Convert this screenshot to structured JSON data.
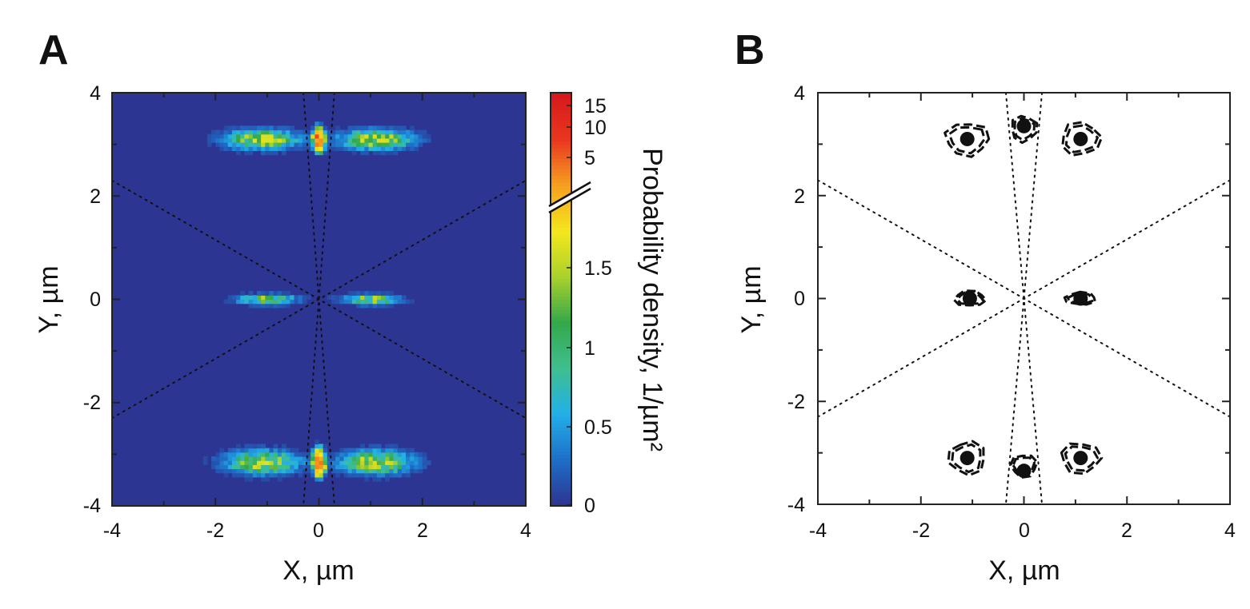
{
  "chart_data": [
    {
      "type": "heatmap",
      "panel_label": "A",
      "xlabel": "X, µm",
      "ylabel": "Y, µm",
      "xlim": [
        -4,
        4
      ],
      "ylim": [
        -4,
        4
      ],
      "xticks": [
        "-4",
        "-2",
        "0",
        "2",
        "4"
      ],
      "yticks": [
        "-4",
        "-2",
        "0",
        "2",
        "4"
      ],
      "x_values": [
        -4,
        -2,
        0,
        2,
        4
      ],
      "y_values": [
        -4,
        -2,
        0,
        2,
        4
      ],
      "background_color": "#2d3592",
      "colorbar": {
        "label": "Probability density, 1/µm²",
        "ticks_lower": [
          {
            "label": "0",
            "value": 0
          },
          {
            "label": "0.5",
            "value": 0.5
          },
          {
            "label": "1",
            "value": 1
          },
          {
            "label": "1.5",
            "value": 1.5
          }
        ],
        "ticks_upper": [
          {
            "label": "5",
            "value": 5
          },
          {
            "label": "10",
            "value": 10
          },
          {
            "label": "15",
            "value": 15
          }
        ],
        "lower_range": [
          0,
          2
        ],
        "upper_range": [
          2,
          17
        ],
        "axis_break": true,
        "colors": [
          "#2d3592",
          "#1e6fc8",
          "#22b0e8",
          "#3fbf8f",
          "#33a84a",
          "#a9d12b",
          "#f4e71d",
          "#f6a11f",
          "#e9381f",
          "#d7191c"
        ]
      },
      "clusters": [
        {
          "x": -1.1,
          "y": 3.1,
          "sx": 0.45,
          "sy": 0.12,
          "peak": 2.0
        },
        {
          "x": 1.1,
          "y": 3.1,
          "sx": 0.45,
          "sy": 0.12,
          "peak": 2.0
        },
        {
          "x": 0.0,
          "y": 3.1,
          "sx": 0.06,
          "sy": 0.12,
          "peak": 12
        },
        {
          "x": -1.0,
          "y": 0.0,
          "sx": 0.35,
          "sy": 0.06,
          "peak": 1.8
        },
        {
          "x": 1.0,
          "y": 0.0,
          "sx": 0.35,
          "sy": 0.06,
          "peak": 1.8
        },
        {
          "x": -1.1,
          "y": -3.15,
          "sx": 0.45,
          "sy": 0.14,
          "peak": 2.0
        },
        {
          "x": 1.1,
          "y": -3.15,
          "sx": 0.45,
          "sy": 0.14,
          "peak": 2.0
        },
        {
          "x": 0.0,
          "y": -3.15,
          "sx": 0.06,
          "sy": 0.13,
          "peak": 12
        }
      ],
      "guide_lines": [
        {
          "from": [
            -4,
            2.3
          ],
          "to": [
            4,
            -2.3
          ]
        },
        {
          "from": [
            -4,
            -2.3
          ],
          "to": [
            4,
            2.3
          ]
        },
        {
          "from": [
            -0.3,
            4
          ],
          "to": [
            0.3,
            -4
          ]
        },
        {
          "from": [
            0.3,
            4
          ],
          "to": [
            -0.3,
            -4
          ]
        }
      ]
    },
    {
      "type": "scatter",
      "panel_label": "B",
      "xlabel": "X, µm",
      "ylabel": "Y, µm",
      "xlim": [
        -4,
        4
      ],
      "ylim": [
        -4,
        4
      ],
      "xticks": [
        "-4",
        "-2",
        "0",
        "2",
        "4"
      ],
      "yticks": [
        "-4",
        "-2",
        "0",
        "2",
        "4"
      ],
      "x_values": [
        -4,
        -2,
        0,
        2,
        4
      ],
      "y_values": [
        -4,
        -2,
        0,
        2,
        4
      ],
      "points": [
        {
          "x": -1.1,
          "y": 3.1
        },
        {
          "x": 0.0,
          "y": 3.35
        },
        {
          "x": 1.1,
          "y": 3.1
        },
        {
          "x": -1.05,
          "y": 0.0
        },
        {
          "x": 1.1,
          "y": 0.0
        },
        {
          "x": -1.1,
          "y": -3.1
        },
        {
          "x": 0.0,
          "y": -3.35
        },
        {
          "x": 1.1,
          "y": -3.1
        }
      ],
      "contours": [
        {
          "x": -1.1,
          "y": 3.1,
          "rx": 0.42,
          "ry": 0.32
        },
        {
          "x": 0.0,
          "y": 3.3,
          "rx": 0.25,
          "ry": 0.25
        },
        {
          "x": 1.1,
          "y": 3.1,
          "rx": 0.38,
          "ry": 0.32
        },
        {
          "x": -1.05,
          "y": 0.0,
          "rx": 0.3,
          "ry": 0.15
        },
        {
          "x": 1.1,
          "y": 0.0,
          "rx": 0.3,
          "ry": 0.12
        },
        {
          "x": -1.1,
          "y": -3.1,
          "rx": 0.36,
          "ry": 0.32
        },
        {
          "x": 0.0,
          "y": -3.25,
          "rx": 0.25,
          "ry": 0.22
        },
        {
          "x": 1.1,
          "y": -3.1,
          "rx": 0.38,
          "ry": 0.3
        }
      ],
      "guide_lines": [
        {
          "from": [
            -4,
            2.3
          ],
          "to": [
            4,
            -2.3
          ]
        },
        {
          "from": [
            -4,
            -2.3
          ],
          "to": [
            4,
            2.3
          ]
        },
        {
          "from": [
            -0.35,
            4
          ],
          "to": [
            0.35,
            -4
          ]
        },
        {
          "from": [
            0.35,
            4
          ],
          "to": [
            -0.35,
            -4
          ]
        }
      ]
    }
  ]
}
